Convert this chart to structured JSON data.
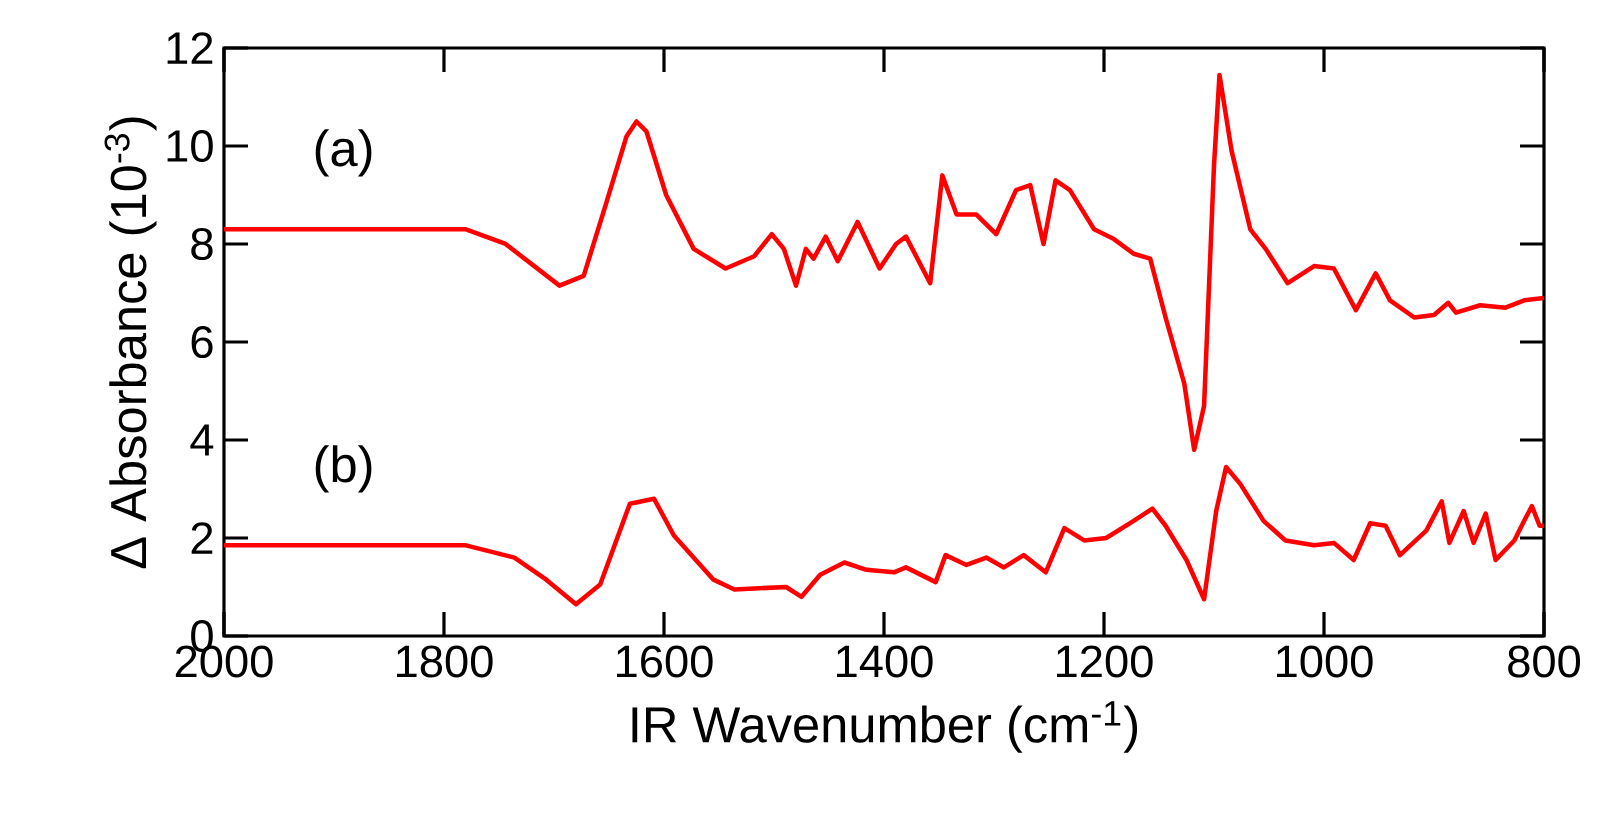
{
  "chart_data": {
    "type": "line",
    "xlabel": "IR Wavenumber (cm$^{-1}$)",
    "ylabel": "Δ Absorbance (10$^{-3}$)",
    "xlim": [
      2000,
      800
    ],
    "ylim": [
      0,
      12
    ],
    "xticks": [
      2000,
      1800,
      1600,
      1400,
      1200,
      1000,
      800
    ],
    "yticks": [
      0,
      2,
      4,
      6,
      8,
      10,
      12
    ],
    "grid": false,
    "legend": false,
    "marker": "none",
    "line_style": "solid",
    "series": [
      {
        "name": "(a)",
        "color": "#ff0000",
        "x": [
          2000,
          1900,
          1780,
          1744,
          1695,
          1673,
          1653,
          1634,
          1625,
          1616,
          1598,
          1573,
          1544,
          1518,
          1502,
          1491,
          1480,
          1471,
          1464,
          1453,
          1442,
          1424,
          1404,
          1389,
          1380,
          1358,
          1347,
          1334,
          1316,
          1298,
          1280,
          1267,
          1255,
          1244,
          1231,
          1209,
          1191,
          1173,
          1158,
          1144,
          1127,
          1118,
          1109,
          1100,
          1095,
          1084,
          1067,
          1053,
          1033,
          1009,
          991,
          971,
          953,
          940,
          918,
          900,
          887,
          880,
          858,
          835,
          818,
          800
        ],
        "values": [
          8.3,
          8.3,
          8.3,
          8.0,
          7.15,
          7.35,
          8.8,
          10.2,
          10.5,
          10.3,
          9.0,
          7.9,
          7.5,
          7.75,
          8.2,
          7.9,
          7.15,
          7.9,
          7.7,
          8.15,
          7.65,
          8.45,
          7.5,
          8.0,
          8.15,
          7.2,
          9.4,
          8.6,
          8.6,
          8.2,
          9.1,
          9.2,
          8.0,
          9.3,
          9.1,
          8.3,
          8.1,
          7.8,
          7.7,
          6.5,
          5.15,
          3.8,
          4.7,
          9.6,
          11.45,
          9.9,
          8.3,
          7.9,
          7.2,
          7.55,
          7.5,
          6.65,
          7.4,
          6.85,
          6.5,
          6.55,
          6.8,
          6.6,
          6.75,
          6.7,
          6.85,
          6.9
        ]
      },
      {
        "name": "(b)",
        "color": "#ff0000",
        "x": [
          2000,
          1900,
          1780,
          1736,
          1707,
          1680,
          1658,
          1631,
          1609,
          1591,
          1555,
          1536,
          1489,
          1475,
          1458,
          1436,
          1416,
          1391,
          1380,
          1353,
          1344,
          1325,
          1307,
          1291,
          1273,
          1253,
          1236,
          1218,
          1198,
          1173,
          1156,
          1144,
          1125,
          1109,
          1098,
          1089,
          1076,
          1055,
          1035,
          1009,
          991,
          973,
          958,
          944,
          931,
          907,
          893,
          886,
          873,
          864,
          853,
          844,
          827,
          818,
          811,
          804,
          800
        ],
        "values": [
          1.85,
          1.85,
          1.85,
          1.6,
          1.15,
          0.65,
          1.05,
          2.7,
          2.8,
          2.05,
          1.15,
          0.95,
          1.0,
          0.8,
          1.25,
          1.5,
          1.35,
          1.3,
          1.4,
          1.1,
          1.65,
          1.45,
          1.6,
          1.4,
          1.65,
          1.3,
          2.2,
          1.95,
          2.0,
          2.35,
          2.6,
          2.25,
          1.55,
          0.75,
          2.55,
          3.45,
          3.1,
          2.35,
          1.95,
          1.85,
          1.9,
          1.55,
          2.3,
          2.25,
          1.65,
          2.15,
          2.75,
          1.9,
          2.55,
          1.9,
          2.5,
          1.55,
          1.95,
          2.35,
          2.65,
          2.25,
          2.25
        ]
      }
    ]
  }
}
